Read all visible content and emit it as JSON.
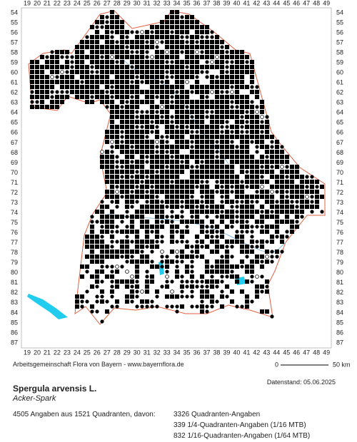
{
  "map": {
    "columns": [
      19,
      20,
      21,
      22,
      23,
      24,
      25,
      26,
      27,
      28,
      29,
      30,
      31,
      32,
      33,
      34,
      35,
      36,
      37,
      38,
      39,
      40,
      41,
      42,
      43,
      44,
      45,
      46,
      47,
      48,
      49
    ],
    "rows": [
      54,
      55,
      56,
      57,
      58,
      59,
      60,
      61,
      62,
      63,
      64,
      65,
      66,
      67,
      68,
      69,
      70,
      71,
      72,
      73,
      74,
      75,
      76,
      77,
      78,
      79,
      80,
      81,
      82,
      83,
      84,
      85,
      86,
      87
    ],
    "scale_start": "0",
    "scale_end": "50 km"
  },
  "footer": {
    "credit": "Arbeitsgemeinschaft Flora von Bayern - www.bayernflora.de",
    "date": "Datenstand: 05.06.2025",
    "species": "Spergula arvensis L.",
    "common_name": "Acker-Spark",
    "summary": "4505 Angaben aus 1521 Quadranten, davon:",
    "counts": [
      "3326 Quadranten-Angaben",
      "339 1/4-Quadranten-Angaben (1/16 MTB)",
      "832 1/16-Quadranten-Angaben (1/64 MTB)"
    ]
  }
}
